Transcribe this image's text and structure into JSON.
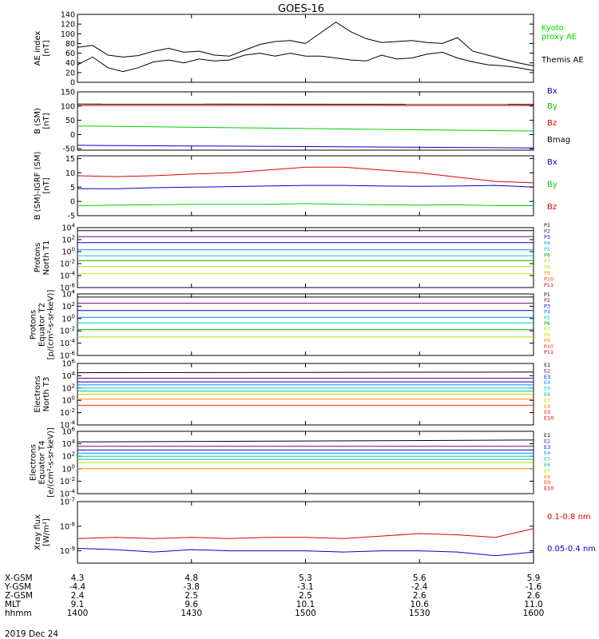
{
  "title": "GOES-16",
  "date": "2019 Dec 24",
  "panels": [
    {
      "id": "ae",
      "ylabel": "AE index\n[nT]",
      "yticks": [
        "0",
        "20",
        "40",
        "60",
        "80",
        "100",
        "120",
        "140"
      ],
      "legend": [
        {
          "label": "Kyoto\nproxy AE",
          "color": "#00dd00"
        },
        {
          "label": "Themis AE",
          "color": "#000000"
        }
      ]
    },
    {
      "id": "bsm",
      "ylabel": "B (SM)\n[nT]",
      "yticks": [
        "-50",
        "0",
        "50",
        "100",
        "150"
      ],
      "legend": [
        {
          "label": "Bx",
          "color": "#0000cc"
        },
        {
          "label": "By",
          "color": "#00cc00"
        },
        {
          "label": "Bz",
          "color": "#dd0000"
        },
        {
          "label": "Bmag",
          "color": "#000000"
        }
      ]
    },
    {
      "id": "bigrf",
      "ylabel": "B (SM)-IGRF (SM)\n[nT]",
      "yticks": [
        "-5",
        "0",
        "5",
        "10",
        "15"
      ],
      "legend": [
        {
          "label": "Bx",
          "color": "#0000cc"
        },
        {
          "label": "By",
          "color": "#00cc00"
        },
        {
          "label": "Bz",
          "color": "#dd0000"
        }
      ]
    },
    {
      "id": "protons-t1",
      "ylabel": "Protons\nNorth T1",
      "yticks": [
        "10^-6",
        "10^-4",
        "10^-2",
        "10^0",
        "10^2",
        "10^4"
      ],
      "legend": [
        {
          "label": "P1",
          "color": "#000000"
        },
        {
          "label": "P2",
          "color": "#7a007a"
        },
        {
          "label": "P3",
          "color": "#0000cc"
        },
        {
          "label": "P4",
          "color": "#0088ff"
        },
        {
          "label": "P5",
          "color": "#00cccc"
        },
        {
          "label": "P6",
          "color": "#00aa00"
        },
        {
          "label": "P7",
          "color": "#aadd00"
        },
        {
          "label": "P8",
          "color": "#dddd00"
        },
        {
          "label": "P9",
          "color": "#ff8800"
        },
        {
          "label": "P10",
          "color": "#ff3300"
        },
        {
          "label": "P11",
          "color": "#cc0000"
        }
      ]
    },
    {
      "id": "protons-t2",
      "ylabel": "Protons\nEquator T2\n[p/(cm²-s-sr-keV)]",
      "yticks": [
        "10^-6",
        "10^-4",
        "10^-2",
        "10^0",
        "10^2",
        "10^4"
      ],
      "legend": [
        {
          "label": "P1",
          "color": "#000000"
        },
        {
          "label": "P2",
          "color": "#7a007a"
        },
        {
          "label": "P3",
          "color": "#0000cc"
        },
        {
          "label": "P4",
          "color": "#0088ff"
        },
        {
          "label": "P5",
          "color": "#00cccc"
        },
        {
          "label": "P6",
          "color": "#00aa00"
        },
        {
          "label": "P7",
          "color": "#aadd00"
        },
        {
          "label": "P8",
          "color": "#dddd00"
        },
        {
          "label": "P9",
          "color": "#ff8800"
        },
        {
          "label": "P10",
          "color": "#ff3300"
        },
        {
          "label": "P11",
          "color": "#cc0000"
        }
      ]
    },
    {
      "id": "electrons-t3",
      "ylabel": "Electrons\nNorth T3",
      "yticks": [
        "10^-4",
        "10^-2",
        "10^0",
        "10^2",
        "10^4",
        "10^6"
      ],
      "legend": [
        {
          "label": "E1",
          "color": "#000000"
        },
        {
          "label": "E2",
          "color": "#7a007a"
        },
        {
          "label": "E3",
          "color": "#0000cc"
        },
        {
          "label": "E4",
          "color": "#0088ff"
        },
        {
          "label": "E5",
          "color": "#00cccc"
        },
        {
          "label": "E6",
          "color": "#00bb88"
        },
        {
          "label": "E7",
          "color": "#aadd00"
        },
        {
          "label": "E8",
          "color": "#ff8800"
        },
        {
          "label": "E9",
          "color": "#ff3300"
        },
        {
          "label": "E10",
          "color": "#cc0000"
        }
      ]
    },
    {
      "id": "electrons-t4",
      "ylabel": "Electrons\nEquator T4\n[e/(cm²-s-sr-keV)]",
      "yticks": [
        "10^-4",
        "10^-2",
        "10^0",
        "10^2",
        "10^4",
        "10^6"
      ],
      "legend": [
        {
          "label": "E1",
          "color": "#000000"
        },
        {
          "label": "E2",
          "color": "#7a007a"
        },
        {
          "label": "E3",
          "color": "#0000cc"
        },
        {
          "label": "E4",
          "color": "#0088ff"
        },
        {
          "label": "E5",
          "color": "#00cccc"
        },
        {
          "label": "E6",
          "color": "#00bb88"
        },
        {
          "label": "E7",
          "color": "#aadd00"
        },
        {
          "label": "E8",
          "color": "#ff8800"
        },
        {
          "label": "E9",
          "color": "#ff3300"
        },
        {
          "label": "E10",
          "color": "#cc0000"
        }
      ]
    },
    {
      "id": "xray",
      "ylabel": "Xray flux\n[W/m²]",
      "yticks": [
        "10^-9",
        "10^-8",
        "10^-7"
      ],
      "legend": [
        {
          "label": "0.1-0.8 nm",
          "color": "#dd0000"
        },
        {
          "label": "0.05-0.4 nm",
          "color": "#0000cc"
        }
      ]
    }
  ],
  "xaxis": {
    "rows": [
      {
        "label": "X-GSM",
        "values": [
          "4.3",
          "4.8",
          "5.3",
          "5.6",
          "5.9"
        ]
      },
      {
        "label": "Y-GSM",
        "values": [
          "-4.4",
          "-3.8",
          "-3.1",
          "-2.4",
          "-1.6"
        ]
      },
      {
        "label": "Z-GSM",
        "values": [
          "2.4",
          "2.5",
          "2.5",
          "2.6",
          "2.6"
        ]
      },
      {
        "label": "MLT",
        "values": [
          "9.1",
          "9.6",
          "10.1",
          "10.6",
          "11.0"
        ]
      },
      {
        "label": "hhmm",
        "values": [
          "1400",
          "1430",
          "1500",
          "1530",
          "1600"
        ]
      }
    ]
  },
  "chart_data": [
    {
      "type": "line",
      "x": [
        1400,
        1404,
        1408,
        1412,
        1416,
        1420,
        1424,
        1428,
        1432,
        1436,
        1440,
        1444,
        1448,
        1452,
        1456,
        1500,
        1504,
        1508,
        1512,
        1516,
        1520,
        1524,
        1528,
        1532,
        1536,
        1540,
        1544,
        1548,
        1552,
        1556,
        1600
      ],
      "series": [
        {
          "name": "Themis AE",
          "values": [
            72,
            76,
            56,
            52,
            55,
            64,
            70,
            62,
            64,
            56,
            54,
            66,
            78,
            84,
            86,
            80,
            102,
            124,
            104,
            90,
            82,
            84,
            86,
            82,
            80,
            92,
            64,
            56,
            48,
            40,
            34
          ]
        },
        {
          "name": "Kyoto proxy AE",
          "values": [
            36,
            52,
            30,
            22,
            30,
            42,
            46,
            40,
            48,
            44,
            46,
            56,
            60,
            54,
            60,
            54,
            54,
            50,
            46,
            44,
            56,
            48,
            50,
            58,
            62,
            50,
            42,
            36,
            34,
            30,
            24
          ]
        }
      ]
    },
    {
      "type": "line",
      "x": [
        1400,
        1600
      ],
      "series": [
        {
          "name": "Bmag",
          "values": [
            107,
            106
          ]
        },
        {
          "name": "Bz",
          "values": [
            102,
            102
          ]
        },
        {
          "name": "By",
          "values": [
            30,
            12
          ]
        },
        {
          "name": "Bx",
          "values": [
            -38,
            -47
          ]
        }
      ]
    },
    {
      "type": "line",
      "x": [
        1400,
        1410,
        1420,
        1430,
        1440,
        1450,
        1500,
        1510,
        1520,
        1530,
        1540,
        1550,
        1600
      ],
      "series": [
        {
          "name": "Bz",
          "values": [
            9,
            8.7,
            9,
            9.6,
            10,
            11,
            12,
            12,
            11,
            10,
            8.5,
            7,
            6.5
          ]
        },
        {
          "name": "Bx",
          "values": [
            4.5,
            4.4,
            4.8,
            5,
            5.2,
            5.4,
            5.6,
            5.6,
            5.4,
            5.3,
            5.4,
            5.6,
            5
          ]
        },
        {
          "name": "By",
          "values": [
            -1.5,
            -1.3,
            -1.2,
            -1,
            -1,
            -1,
            -0.8,
            -1,
            -1.2,
            -1.3,
            -1.2,
            -1.5,
            -1.5
          ]
        }
      ]
    },
    {
      "type": "line",
      "x": [
        1400,
        1600
      ],
      "series": [
        {
          "name": "P1",
          "values": [
            3.5,
            3.5
          ]
        },
        {
          "name": "P2",
          "values": [
            2.5,
            2.5
          ]
        },
        {
          "name": "P3",
          "values": [
            1.5,
            1.5
          ]
        },
        {
          "name": "P4",
          "values": [
            0.3,
            0.3
          ]
        },
        {
          "name": "P5",
          "values": [
            -0.7,
            -0.7
          ]
        },
        {
          "name": "P6",
          "values": [
            -1.5,
            -1.5
          ]
        },
        {
          "name": "P7",
          "values": [
            -2.5,
            -2.5
          ]
        },
        {
          "name": "P8",
          "values": [
            -3.7,
            -3.7
          ]
        }
      ]
    },
    {
      "type": "line",
      "x": [
        1400,
        1600
      ],
      "series": [
        {
          "name": "P1",
          "values": [
            3.5,
            3.5
          ]
        },
        {
          "name": "P2",
          "values": [
            2.5,
            2.5
          ]
        },
        {
          "name": "P3",
          "values": [
            1.3,
            1.3
          ]
        },
        {
          "name": "P4",
          "values": [
            0.2,
            0.2
          ]
        },
        {
          "name": "P5",
          "values": [
            -0.7,
            -0.7
          ]
        },
        {
          "name": "P6",
          "values": [
            -1.8,
            -1.8
          ]
        },
        {
          "name": "P7",
          "values": [
            -3,
            -3
          ]
        }
      ]
    },
    {
      "type": "line",
      "x": [
        1400,
        1600
      ],
      "series": [
        {
          "name": "E1",
          "values": [
            4.5,
            4.6
          ]
        },
        {
          "name": "E2",
          "values": [
            3.6,
            3.6
          ]
        },
        {
          "name": "E3",
          "values": [
            3,
            3
          ]
        },
        {
          "name": "E4",
          "values": [
            2.5,
            2.5
          ]
        },
        {
          "name": "E5",
          "values": [
            2,
            2
          ]
        },
        {
          "name": "E6",
          "values": [
            1.5,
            1.5
          ]
        },
        {
          "name": "E7",
          "values": [
            1,
            1
          ]
        },
        {
          "name": "E8",
          "values": [
            0.2,
            0.2
          ]
        },
        {
          "name": "E9",
          "values": [
            -0.8,
            -0.8
          ]
        }
      ]
    },
    {
      "type": "line",
      "x": [
        1400,
        1600
      ],
      "series": [
        {
          "name": "E1",
          "values": [
            4.3,
            4.6
          ]
        },
        {
          "name": "E2",
          "values": [
            3.6,
            3.6
          ]
        },
        {
          "name": "E3",
          "values": [
            3,
            3
          ]
        },
        {
          "name": "E4",
          "values": [
            2.5,
            2.5
          ]
        },
        {
          "name": "E5",
          "values": [
            2,
            2
          ]
        },
        {
          "name": "E6",
          "values": [
            1.5,
            1.5
          ]
        },
        {
          "name": "E7",
          "values": [
            1,
            1
          ]
        },
        {
          "name": "E8",
          "values": [
            0,
            0
          ]
        }
      ]
    },
    {
      "type": "line",
      "x": [
        1400,
        1410,
        1420,
        1430,
        1440,
        1450,
        1500,
        1510,
        1520,
        1530,
        1540,
        1550,
        1600
      ],
      "series": [
        {
          "name": "0.1-0.8 nm",
          "values": [
            -8.5,
            -8.45,
            -8.5,
            -8.45,
            -8.5,
            -8.45,
            -8.45,
            -8.5,
            -8.4,
            -8.3,
            -8.35,
            -8.45,
            -8.1
          ]
        },
        {
          "name": "0.05-0.4 nm",
          "values": [
            -8.9,
            -8.95,
            -9.05,
            -8.95,
            -9,
            -9,
            -9,
            -9.05,
            -9,
            -9,
            -9.05,
            -9.2,
            -9.05
          ]
        }
      ]
    }
  ]
}
